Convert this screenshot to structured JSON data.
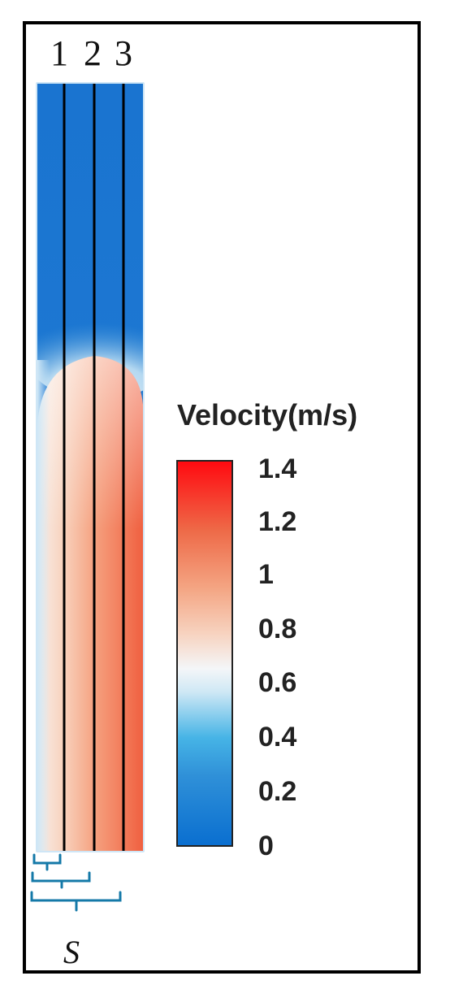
{
  "lines": [
    {
      "label": "1"
    },
    {
      "label": "2"
    },
    {
      "label": "3"
    }
  ],
  "legend": {
    "title": "Velocity(m/s)",
    "ticks": [
      "1.4",
      "1.2",
      "1",
      "0.8",
      "0.6",
      "0.4",
      "0.2",
      "0"
    ],
    "range": [
      0,
      1.4
    ],
    "colors": {
      "low": "#0a6fd0",
      "mid": "#f4f6f8",
      "high": "#ff0a10"
    }
  },
  "spacing_label": "S"
}
